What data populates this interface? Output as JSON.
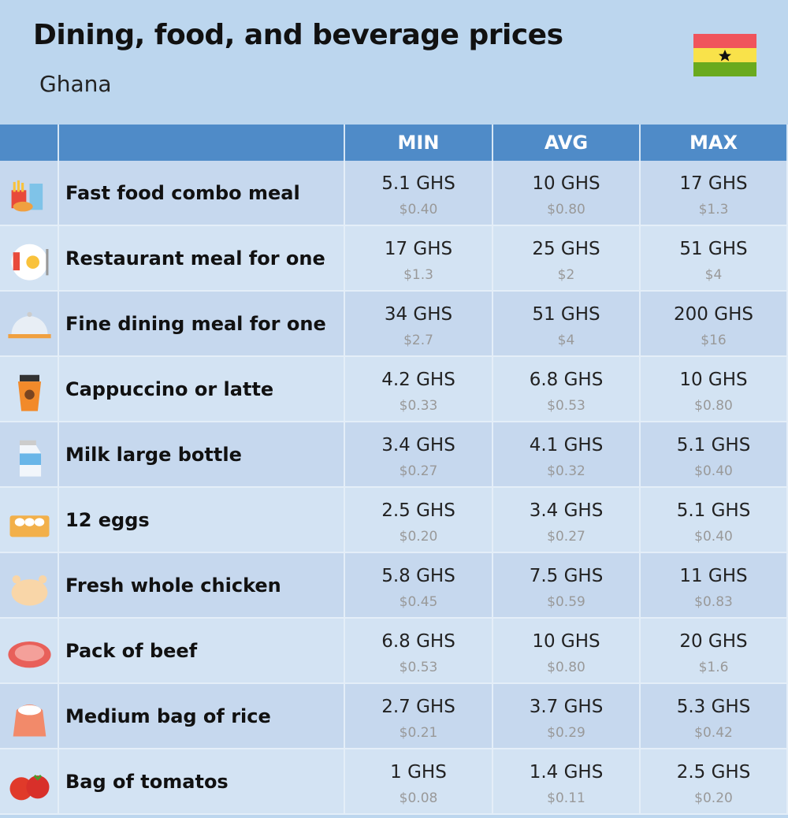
{
  "header": {
    "title": "Dining, food, and beverage prices",
    "subtitle": "Ghana"
  },
  "table": {
    "columns": [
      "MIN",
      "AVG",
      "MAX"
    ],
    "rows": [
      {
        "name": "Fast food combo meal",
        "cells": [
          [
            "5.1 GHS",
            "$0.40"
          ],
          [
            "10 GHS",
            "$0.80"
          ],
          [
            "17 GHS",
            "$1.3"
          ]
        ]
      },
      {
        "name": "Restaurant meal for one",
        "cells": [
          [
            "17 GHS",
            "$1.3"
          ],
          [
            "25 GHS",
            "$2"
          ],
          [
            "51 GHS",
            "$4"
          ]
        ]
      },
      {
        "name": "Fine dining meal for one",
        "cells": [
          [
            "34 GHS",
            "$2.7"
          ],
          [
            "51 GHS",
            "$4"
          ],
          [
            "200 GHS",
            "$16"
          ]
        ]
      },
      {
        "name": "Cappuccino or latte",
        "cells": [
          [
            "4.2 GHS",
            "$0.33"
          ],
          [
            "6.8 GHS",
            "$0.53"
          ],
          [
            "10 GHS",
            "$0.80"
          ]
        ]
      },
      {
        "name": "Milk large bottle",
        "cells": [
          [
            "3.4 GHS",
            "$0.27"
          ],
          [
            "4.1 GHS",
            "$0.32"
          ],
          [
            "5.1 GHS",
            "$0.40"
          ]
        ]
      },
      {
        "name": "12 eggs",
        "cells": [
          [
            "2.5 GHS",
            "$0.20"
          ],
          [
            "3.4 GHS",
            "$0.27"
          ],
          [
            "5.1 GHS",
            "$0.40"
          ]
        ]
      },
      {
        "name": "Fresh whole chicken",
        "cells": [
          [
            "5.8 GHS",
            "$0.45"
          ],
          [
            "7.5 GHS",
            "$0.59"
          ],
          [
            "11 GHS",
            "$0.83"
          ]
        ]
      },
      {
        "name": "Pack of beef",
        "cells": [
          [
            "6.8 GHS",
            "$0.53"
          ],
          [
            "10 GHS",
            "$0.80"
          ],
          [
            "20 GHS",
            "$1.6"
          ]
        ]
      },
      {
        "name": "Medium bag of rice",
        "cells": [
          [
            "2.7 GHS",
            "$0.21"
          ],
          [
            "3.7 GHS",
            "$0.29"
          ],
          [
            "5.3 GHS",
            "$0.42"
          ]
        ]
      },
      {
        "name": "Bag of tomatos",
        "cells": [
          [
            "1 GHS",
            "$0.08"
          ],
          [
            "1.4 GHS",
            "$0.11"
          ],
          [
            "2.5 GHS",
            "$0.20"
          ]
        ]
      }
    ]
  }
}
